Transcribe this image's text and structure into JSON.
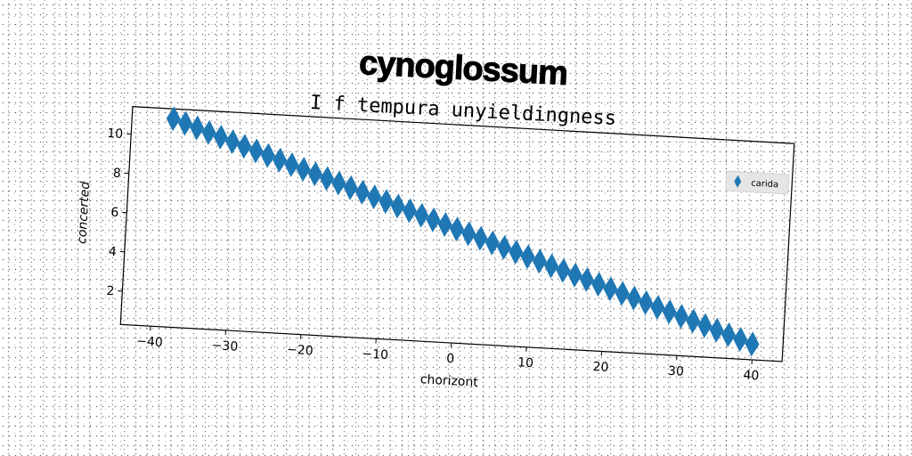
{
  "chart_data": {
    "type": "scatter",
    "title": "cynoglossum",
    "subtitle": "I f tempura unyieldingness",
    "xlabel": "chorizont",
    "ylabel": "concerted",
    "xlim": [
      -44,
      44
    ],
    "ylim": [
      0.3,
      11.4
    ],
    "xticks": [
      -40,
      -30,
      -20,
      -10,
      0,
      10,
      20,
      30,
      40
    ],
    "yticks": [
      2,
      4,
      6,
      8,
      10
    ],
    "legend_position": "upper right",
    "grid": false,
    "series": [
      {
        "name": "carida",
        "color": "#1f77b4",
        "marker": "diamond",
        "x": [
          -38.5,
          -36.9,
          -35.3,
          -33.7,
          -32.1,
          -30.5,
          -28.9,
          -27.3,
          -25.7,
          -24.1,
          -22.5,
          -20.9,
          -19.3,
          -17.7,
          -16.1,
          -14.5,
          -12.9,
          -11.3,
          -9.7,
          -8.1,
          -6.5,
          -4.9,
          -3.3,
          -1.7,
          -0.1,
          1.5,
          3.1,
          4.7,
          6.3,
          7.9,
          9.5,
          11.1,
          12.7,
          14.3,
          15.9,
          17.5,
          19.1,
          20.7,
          22.3,
          23.9,
          25.5,
          27.1,
          28.7,
          30.3,
          31.9,
          33.5,
          35.1,
          36.7,
          38.3,
          39.9
        ],
        "y": [
          10.9,
          10.7,
          10.5,
          10.3,
          10.1,
          9.9,
          9.7,
          9.5,
          9.3,
          9.1,
          8.9,
          8.7,
          8.5,
          8.3,
          8.1,
          7.9,
          7.7,
          7.5,
          7.3,
          7.1,
          6.9,
          6.7,
          6.5,
          6.3,
          6.1,
          5.9,
          5.7,
          5.5,
          5.3,
          5.1,
          4.9,
          4.7,
          4.5,
          4.3,
          4.1,
          3.9,
          3.7,
          3.5,
          3.3,
          3.1,
          2.9,
          2.7,
          2.5,
          2.3,
          2.1,
          1.9,
          1.7,
          1.5,
          1.3,
          1.1
        ]
      }
    ]
  }
}
